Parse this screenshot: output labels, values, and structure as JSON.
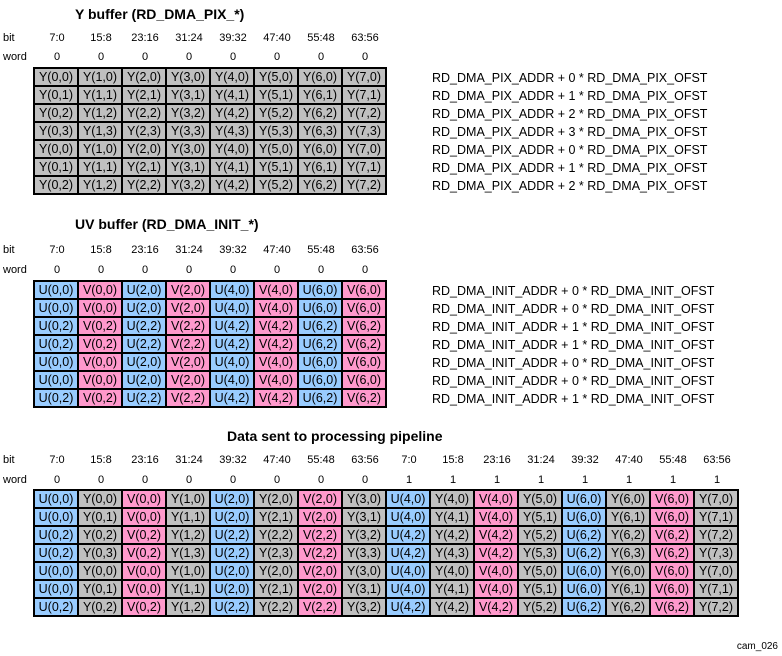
{
  "colors": {
    "Y": "#c0c0c0",
    "U": "#99ccff",
    "V": "#ff99cc"
  },
  "y_buffer": {
    "title": "Y buffer (RD_DMA_PIX_*)",
    "bit_label": "bit",
    "word_label": "word",
    "bits": [
      "7:0",
      "15:8",
      "23:16",
      "31:24",
      "39:32",
      "47:40",
      "55:48",
      "63:56"
    ],
    "words": [
      "0",
      "0",
      "0",
      "0",
      "0",
      "0",
      "0",
      "0"
    ],
    "rows": [
      [
        "Y(0,0)",
        "Y(1,0)",
        "Y(2,0)",
        "Y(3,0)",
        "Y(4,0)",
        "Y(5,0)",
        "Y(6,0)",
        "Y(7,0)"
      ],
      [
        "Y(0,1)",
        "Y(1,1)",
        "Y(2,1)",
        "Y(3,1)",
        "Y(4,1)",
        "Y(5,1)",
        "Y(6,1)",
        "Y(7,1)"
      ],
      [
        "Y(0,2)",
        "Y(1,2)",
        "Y(2,2)",
        "Y(3,2)",
        "Y(4,2)",
        "Y(5,2)",
        "Y(6,2)",
        "Y(7,2)"
      ],
      [
        "Y(0,3)",
        "Y(1,3)",
        "Y(2,3)",
        "Y(3,3)",
        "Y(4,3)",
        "Y(5,3)",
        "Y(6,3)",
        "Y(7,3)"
      ],
      [
        "Y(0,0)",
        "Y(1,0)",
        "Y(2,0)",
        "Y(3,0)",
        "Y(4,0)",
        "Y(5,0)",
        "Y(6,0)",
        "Y(7,0)"
      ],
      [
        "Y(0,1)",
        "Y(1,1)",
        "Y(2,1)",
        "Y(3,1)",
        "Y(4,1)",
        "Y(5,1)",
        "Y(6,1)",
        "Y(7,1)"
      ],
      [
        "Y(0,2)",
        "Y(1,2)",
        "Y(2,2)",
        "Y(3,2)",
        "Y(4,2)",
        "Y(5,2)",
        "Y(6,2)",
        "Y(7,2)"
      ]
    ],
    "addr": [
      "RD_DMA_PIX_ADDR + 0 * RD_DMA_PIX_OFST",
      "RD_DMA_PIX_ADDR + 1 * RD_DMA_PIX_OFST",
      "RD_DMA_PIX_ADDR + 2 * RD_DMA_PIX_OFST",
      "RD_DMA_PIX_ADDR + 3 * RD_DMA_PIX_OFST",
      "RD_DMA_PIX_ADDR + 0 * RD_DMA_PIX_OFST",
      "RD_DMA_PIX_ADDR + 1 * RD_DMA_PIX_OFST",
      "RD_DMA_PIX_ADDR + 2 * RD_DMA_PIX_OFST"
    ]
  },
  "uv_buffer": {
    "title": "UV buffer (RD_DMA_INIT_*)",
    "bit_label": "bit",
    "word_label": "word",
    "bits": [
      "7:0",
      "15:8",
      "23:16",
      "31:24",
      "39:32",
      "47:40",
      "55:48",
      "63:56"
    ],
    "words": [
      "0",
      "0",
      "0",
      "0",
      "0",
      "0",
      "0",
      "0"
    ],
    "rows": [
      [
        "U(0,0)",
        "V(0,0)",
        "U(2,0)",
        "V(2,0)",
        "U(4,0)",
        "V(4,0)",
        "U(6,0)",
        "V(6,0)"
      ],
      [
        "U(0,0)",
        "V(0,0)",
        "U(2,0)",
        "V(2,0)",
        "U(4,0)",
        "V(4,0)",
        "U(6,0)",
        "V(6,0)"
      ],
      [
        "U(0,2)",
        "V(0,2)",
        "U(2,2)",
        "V(2,2)",
        "U(4,2)",
        "V(4,2)",
        "U(6,2)",
        "V(6,2)"
      ],
      [
        "U(0,2)",
        "V(0,2)",
        "U(2,2)",
        "V(2,2)",
        "U(4,2)",
        "V(4,2)",
        "U(6,2)",
        "V(6,2)"
      ],
      [
        "U(0,0)",
        "V(0,0)",
        "U(2,0)",
        "V(2,0)",
        "U(4,0)",
        "V(4,0)",
        "U(6,0)",
        "V(6,0)"
      ],
      [
        "U(0,0)",
        "V(0,0)",
        "U(2,0)",
        "V(2,0)",
        "U(4,0)",
        "V(4,0)",
        "U(6,0)",
        "V(6,0)"
      ],
      [
        "U(0,2)",
        "V(0,2)",
        "U(2,2)",
        "V(2,2)",
        "U(4,2)",
        "V(4,2)",
        "U(6,2)",
        "V(6,2)"
      ]
    ],
    "addr": [
      "RD_DMA_INIT_ADDR + 0 * RD_DMA_INIT_OFST",
      "RD_DMA_INIT_ADDR + 0 * RD_DMA_INIT_OFST",
      "RD_DMA_INIT_ADDR + 1 * RD_DMA_INIT_OFST",
      "RD_DMA_INIT_ADDR + 1 * RD_DMA_INIT_OFST",
      "RD_DMA_INIT_ADDR + 0 * RD_DMA_INIT_OFST",
      "RD_DMA_INIT_ADDR + 0 * RD_DMA_INIT_OFST",
      "RD_DMA_INIT_ADDR + 1 * RD_DMA_INIT_OFST"
    ]
  },
  "pipeline": {
    "title": "Data sent to processing pipeline",
    "bit_label": "bit",
    "word_label": "word",
    "bits": [
      "7:0",
      "15:8",
      "23:16",
      "31:24",
      "39:32",
      "47:40",
      "55:48",
      "63:56",
      "7:0",
      "15:8",
      "23:16",
      "31:24",
      "39:32",
      "47:40",
      "55:48",
      "63:56"
    ],
    "words": [
      "0",
      "0",
      "0",
      "0",
      "0",
      "0",
      "0",
      "0",
      "1",
      "1",
      "1",
      "1",
      "1",
      "1",
      "1",
      "1"
    ],
    "rows": [
      [
        "U(0,0)",
        "Y(0,0)",
        "V(0,0)",
        "Y(1,0)",
        "U(2,0)",
        "Y(2,0)",
        "V(2,0)",
        "Y(3,0)",
        "U(4,0)",
        "Y(4,0)",
        "V(4,0)",
        "Y(5,0)",
        "U(6,0)",
        "Y(6,0)",
        "V(6,0)",
        "Y(7,0)"
      ],
      [
        "U(0,0)",
        "Y(0,1)",
        "V(0,0)",
        "Y(1,1)",
        "U(2,0)",
        "Y(2,1)",
        "V(2,0)",
        "Y(3,1)",
        "U(4,0)",
        "Y(4,1)",
        "V(4,0)",
        "Y(5,1)",
        "U(6,0)",
        "Y(6,1)",
        "V(6,0)",
        "Y(7,1)"
      ],
      [
        "U(0,2)",
        "Y(0,2)",
        "V(0,2)",
        "Y(1,2)",
        "U(2,2)",
        "Y(2,2)",
        "V(2,2)",
        "Y(3,2)",
        "U(4,2)",
        "Y(4,2)",
        "V(4,2)",
        "Y(5,2)",
        "U(6,2)",
        "Y(6,2)",
        "V(6,2)",
        "Y(7,2)"
      ],
      [
        "U(0,2)",
        "Y(0,3)",
        "V(0,2)",
        "Y(1,3)",
        "U(2,2)",
        "Y(2,3)",
        "V(2,2)",
        "Y(3,3)",
        "U(4,2)",
        "Y(4,3)",
        "V(4,2)",
        "Y(5,3)",
        "U(6,2)",
        "Y(6,3)",
        "V(6,2)",
        "Y(7,3)"
      ],
      [
        "U(0,0)",
        "Y(0,0)",
        "V(0,0)",
        "Y(1,0)",
        "U(2,0)",
        "Y(2,0)",
        "V(2,0)",
        "Y(3,0)",
        "U(4,0)",
        "Y(4,0)",
        "V(4,0)",
        "Y(5,0)",
        "U(6,0)",
        "Y(6,0)",
        "V(6,0)",
        "Y(7,0)"
      ],
      [
        "U(0,0)",
        "Y(0,1)",
        "V(0,0)",
        "Y(1,1)",
        "U(2,0)",
        "Y(2,1)",
        "V(2,0)",
        "Y(3,1)",
        "U(4,0)",
        "Y(4,1)",
        "V(4,0)",
        "Y(5,1)",
        "U(6,0)",
        "Y(6,1)",
        "V(6,0)",
        "Y(7,1)"
      ],
      [
        "U(0,2)",
        "Y(0,2)",
        "V(0,2)",
        "Y(1,2)",
        "U(2,2)",
        "Y(2,2)",
        "V(2,2)",
        "Y(3,2)",
        "U(4,2)",
        "Y(4,2)",
        "V(4,2)",
        "Y(5,2)",
        "U(6,2)",
        "Y(6,2)",
        "V(6,2)",
        "Y(7,2)"
      ]
    ]
  },
  "figure_id": "cam_026"
}
